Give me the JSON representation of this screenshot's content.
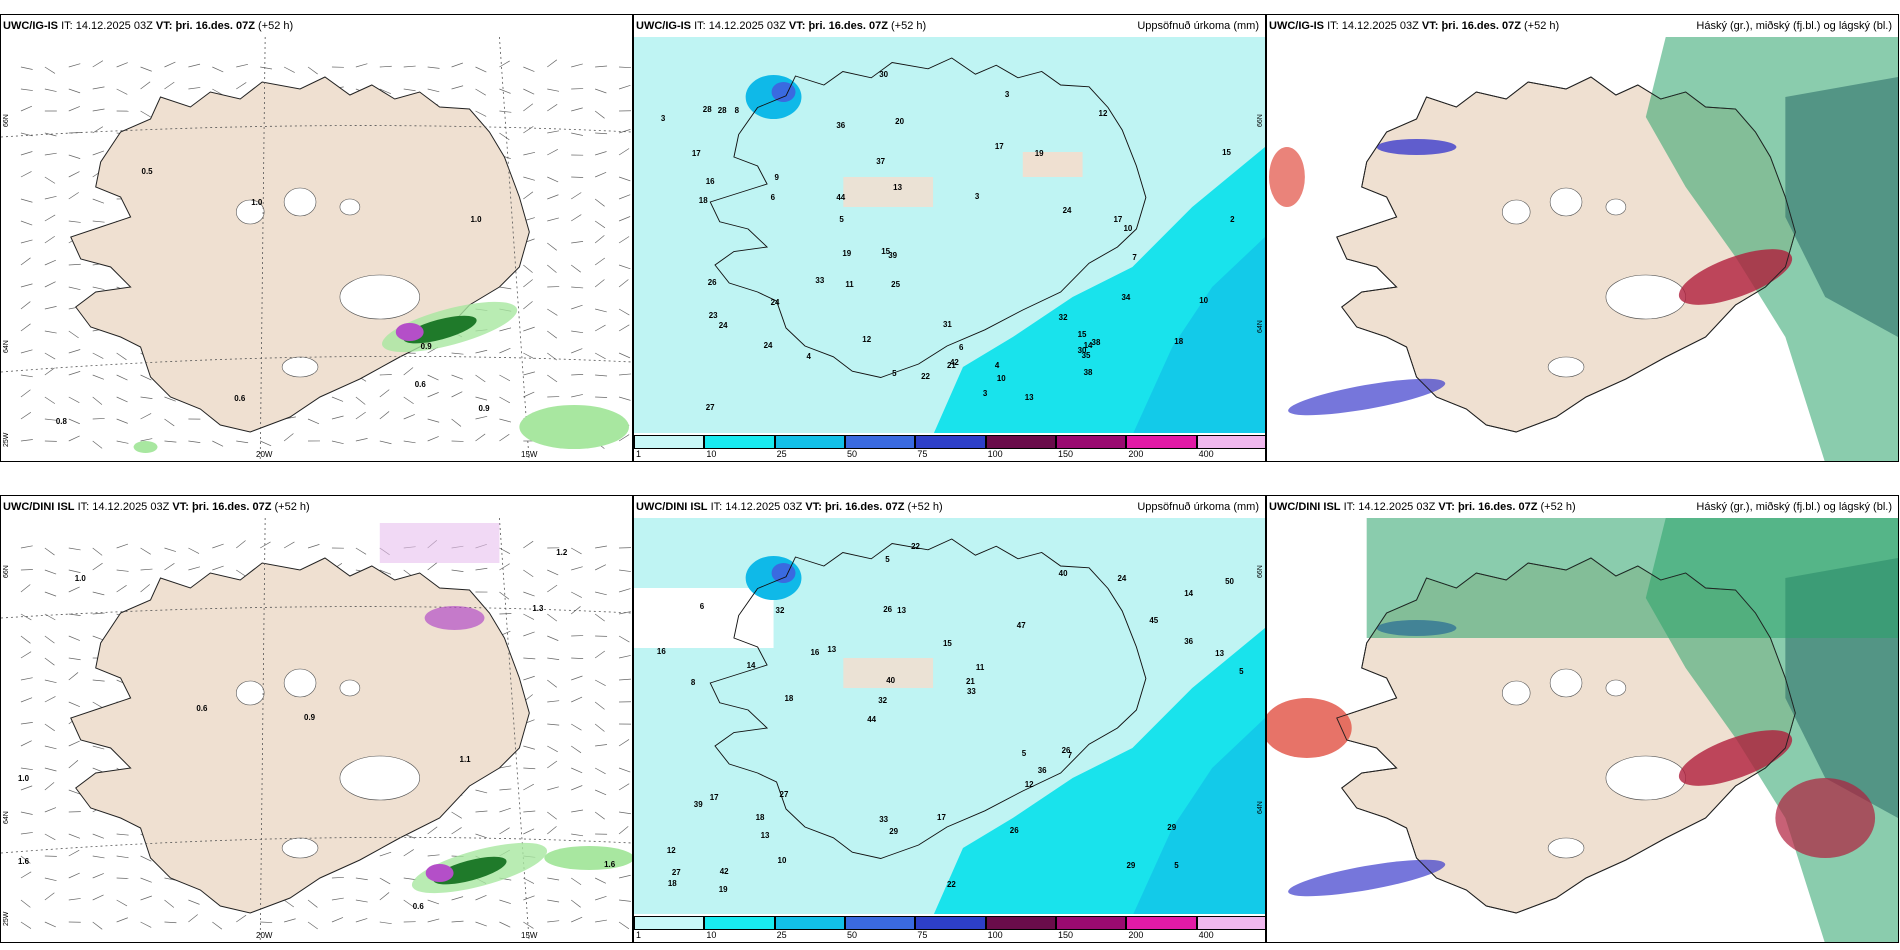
{
  "panels": [
    {
      "model": "UWC/IG-IS",
      "it_label": "IT:",
      "it_value": "14.12.2025 03Z",
      "vt_label": "VT:",
      "vt_value": "þri. 16.des. 07Z",
      "lead": "(+52 h)",
      "right_title": "",
      "kind": "wind"
    },
    {
      "model": "UWC/IG-IS",
      "it_label": "IT:",
      "it_value": "14.12.2025 03Z",
      "vt_label": "VT:",
      "vt_value": "þri. 16.des. 07Z",
      "lead": "(+52 h)",
      "right_title": "Uppsöfnuð úrkoma (mm)",
      "kind": "precip"
    },
    {
      "model": "UWC/IG-IS",
      "it_label": "IT:",
      "it_value": "14.12.2025 03Z",
      "vt_label": "VT:",
      "vt_value": "þri. 16.des. 07Z",
      "lead": "(+52 h)",
      "right_title": "Háský (gr.), miðský (fj.bl.) og lágský (bl.)",
      "kind": "cloud"
    },
    {
      "model": "UWC/DINI ISL",
      "it_label": "IT:",
      "it_value": "14.12.2025 03Z",
      "vt_label": "VT:",
      "vt_value": "þri. 16.des. 07Z",
      "lead": "(+52 h)",
      "right_title": "",
      "kind": "wind"
    },
    {
      "model": "UWC/DINI ISL",
      "it_label": "IT:",
      "it_value": "14.12.2025 03Z",
      "vt_label": "VT:",
      "vt_value": "þri. 16.des. 07Z",
      "lead": "(+52 h)",
      "right_title": "Uppsöfnuð úrkoma (mm)",
      "kind": "precip"
    },
    {
      "model": "UWC/DINI ISL",
      "it_label": "IT:",
      "it_value": "14.12.2025 03Z",
      "vt_label": "VT:",
      "vt_value": "þri. 16.des. 07Z",
      "lead": "(+52 h)",
      "right_title": "Háský (gr.), miðský (fj.bl.) og lágský (bl.)",
      "kind": "cloud"
    }
  ],
  "axes": {
    "lon_20": "20W",
    "lon_15": "15W",
    "lat_66": "66N",
    "lat_64": "64N",
    "lon_25": "25W"
  },
  "colorbar": {
    "ticks": [
      "1",
      "10",
      "25",
      "50",
      "75",
      "100",
      "150",
      "200",
      "400"
    ],
    "colors": [
      "#c8f7f7",
      "#19eaf0",
      "#12c0e8",
      "#3a6ae0",
      "#2d3fc8",
      "#6a0c4a",
      "#9a0a70",
      "#e21aa6",
      "#f0b8ee"
    ]
  },
  "colors": {
    "land": "#efe0d1",
    "sea_precip": "#bff4f3",
    "precip_cyan": "#19e3ec",
    "precip_blue": "#0fb9e8",
    "wind_green": "#1f7a2a",
    "wind_light": "#a8e7a0",
    "wind_purple": "#b44fc8",
    "cloud_green": "#2aa36a",
    "cloud_dark": "#2f6f6a",
    "cloud_blue": "#3c3ccc",
    "cloud_red": "#b01e3c"
  },
  "wind_labels_top": [
    "1.0",
    "0.9",
    "0.8",
    "0.9",
    "0.5",
    "0.6",
    "0.6",
    "1.0"
  ],
  "wind_labels_bottom": [
    "0.9",
    "1.0",
    "1.0",
    "0.6",
    "0.6",
    "1.3",
    "1.6",
    "1.6",
    "1.1",
    "1.2"
  ],
  "precip_labels_top": [
    "5",
    "6",
    "3",
    "3",
    "2",
    "24",
    "42",
    "26",
    "17",
    "9",
    "24",
    "18",
    "22",
    "13",
    "12",
    "10",
    "15",
    "14",
    "10",
    "10",
    "8",
    "7",
    "6",
    "5",
    "4",
    "4",
    "3",
    "3",
    "36",
    "44",
    "28",
    "32",
    "34",
    "31",
    "30",
    "37",
    "28",
    "38",
    "39",
    "33",
    "27",
    "24",
    "19",
    "23",
    "18",
    "17",
    "16",
    "25",
    "30",
    "20",
    "21",
    "17",
    "15",
    "24",
    "15",
    "12",
    "11",
    "13",
    "19",
    "35",
    "38"
  ],
  "precip_labels_bottom": [
    "5",
    "8",
    "14",
    "44",
    "47",
    "42",
    "26",
    "15",
    "17",
    "13",
    "12",
    "13",
    "13",
    "11",
    "7",
    "6",
    "5",
    "5",
    "5",
    "36",
    "32",
    "33",
    "40",
    "32",
    "40",
    "27",
    "29",
    "29",
    "26",
    "22",
    "16",
    "14",
    "12",
    "10",
    "13",
    "21",
    "27",
    "29",
    "33",
    "39",
    "45",
    "50",
    "36",
    "26",
    "18",
    "19",
    "18",
    "17",
    "24",
    "22",
    "18",
    "16"
  ]
}
